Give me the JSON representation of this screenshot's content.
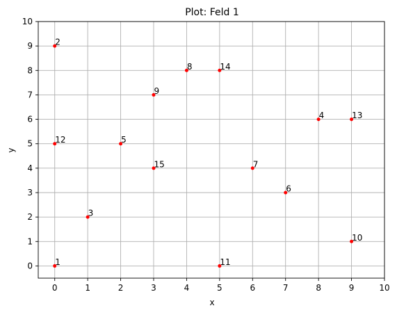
{
  "chart_data": {
    "type": "scatter",
    "title": "Plot: Feld 1",
    "xlabel": "x",
    "ylabel": "y",
    "xlim": [
      -0.5,
      10
    ],
    "ylim": [
      -0.5,
      10
    ],
    "xticks": [
      0,
      1,
      2,
      3,
      4,
      5,
      6,
      7,
      8,
      9,
      10
    ],
    "yticks": [
      0,
      1,
      2,
      3,
      4,
      5,
      6,
      7,
      8,
      9,
      10
    ],
    "grid": true,
    "marker_color": "#ff0000",
    "grid_color": "#b0b0b0",
    "points": [
      {
        "label": "1",
        "x": 0,
        "y": 0
      },
      {
        "label": "2",
        "x": 0,
        "y": 9
      },
      {
        "label": "3",
        "x": 1,
        "y": 2
      },
      {
        "label": "4",
        "x": 8,
        "y": 6
      },
      {
        "label": "5",
        "x": 2,
        "y": 5
      },
      {
        "label": "6",
        "x": 7,
        "y": 3
      },
      {
        "label": "7",
        "x": 6,
        "y": 4
      },
      {
        "label": "8",
        "x": 4,
        "y": 8
      },
      {
        "label": "9",
        "x": 3,
        "y": 7
      },
      {
        "label": "10",
        "x": 9,
        "y": 1
      },
      {
        "label": "11",
        "x": 5,
        "y": 0
      },
      {
        "label": "12",
        "x": 0,
        "y": 5
      },
      {
        "label": "13",
        "x": 9,
        "y": 6
      },
      {
        "label": "14",
        "x": 5,
        "y": 8
      },
      {
        "label": "15",
        "x": 3,
        "y": 4
      }
    ]
  }
}
